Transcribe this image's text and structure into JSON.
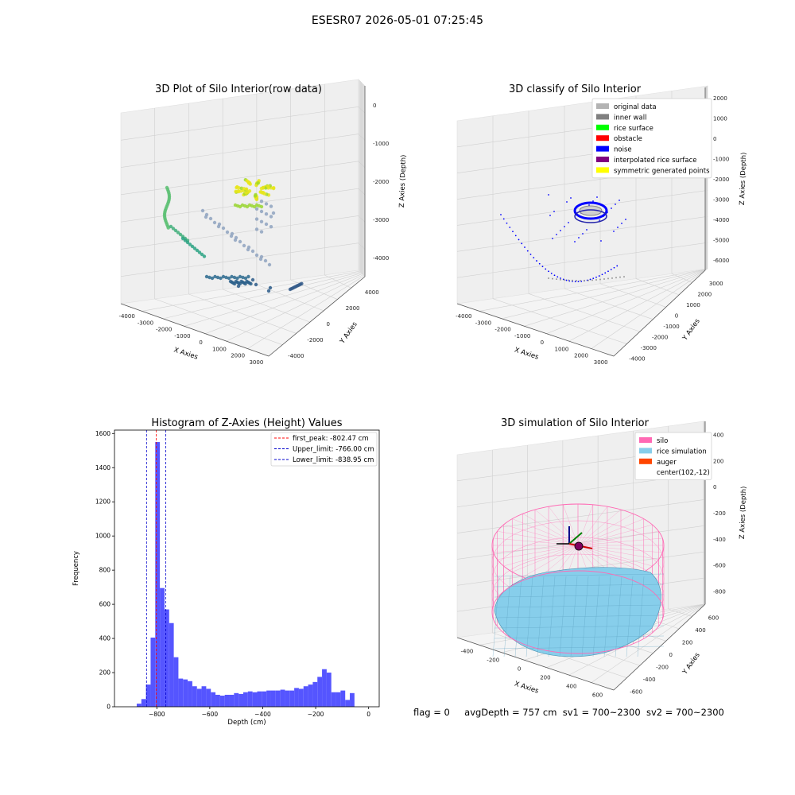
{
  "suptitle": "ESESR07 2026-05-01 07:25:45",
  "footer": {
    "flag": "flag = 0",
    "avg": "avgDepth = 757 cm",
    "sv1": "sv1 = 700~2300",
    "sv2": "sv2 = 700~2300"
  },
  "colors": {
    "hist_bar": "#5555ff",
    "first_peak": "#ff0000",
    "limits": "#0000cc",
    "silo": "#ff69b4",
    "rice": "#87ceeb",
    "auger": "#ff4500",
    "pane": "#f2f2f2",
    "grid": "#d0d0d0"
  },
  "chart_data": [
    {
      "type": "scatter",
      "title": "3D Plot of Silo Interior(row data)",
      "xlabel": "X Axies",
      "ylabel": "Y Axies",
      "zlabel": "Z Axies (Depth)",
      "xticks": [
        "-4000",
        "-3000",
        "-2000",
        "-1000",
        "0",
        "1000",
        "2000",
        "3000"
      ],
      "yticks": [
        "-4000",
        "-2000",
        "0",
        "2000",
        "4000"
      ],
      "zticks": [
        "0",
        "-1000",
        "-2000",
        "-3000",
        "-4000"
      ],
      "xlim": [
        -4500,
        3000
      ],
      "ylim": [
        -4500,
        4500
      ],
      "zlim": [
        -4500,
        200
      ]
    },
    {
      "type": "scatter",
      "title": "3D classify of Silo Interior",
      "xlabel": "X Axies",
      "ylabel": "Y Axies",
      "zlabel": "Z Axies (Depth)",
      "xticks": [
        "-4000",
        "-3000",
        "-2000",
        "-1000",
        "0",
        "1000",
        "2000",
        "3000"
      ],
      "yticks": [
        "-4000",
        "-3000",
        "-2000",
        "-1000",
        "0",
        "1000",
        "2000",
        "3000"
      ],
      "zticks": [
        "2000",
        "1000",
        "0",
        "-1000",
        "-2000",
        "-3000",
        "-4000",
        "-5000",
        "-6000"
      ],
      "legend_position": "upper right",
      "legend": [
        {
          "label": "original data",
          "color": "#b3b3b3"
        },
        {
          "label": "inner wall",
          "color": "#808080"
        },
        {
          "label": "rice surface",
          "color": "#00ff00"
        },
        {
          "label": "obstacle",
          "color": "#ff0000"
        },
        {
          "label": "noise",
          "color": "#0000ff"
        },
        {
          "label": "interpolated rice surface",
          "color": "#800080"
        },
        {
          "label": "symmetric generated points",
          "color": "#ffff00"
        }
      ]
    },
    {
      "type": "bar",
      "title": "Histogram of Z-Axies (Height) Values",
      "xlabel": "Depth (cm)",
      "ylabel": "Frequency",
      "xlim": [
        -960,
        40
      ],
      "ylim": [
        0,
        1620
      ],
      "xticks": [
        -800,
        -600,
        -400,
        -200,
        0
      ],
      "yticks": [
        0,
        200,
        400,
        600,
        800,
        1000,
        1200,
        1400,
        1600
      ],
      "bin_width": 17.5,
      "bin_start": -876,
      "values": [
        18,
        45,
        130,
        405,
        1550,
        695,
        570,
        490,
        290,
        165,
        160,
        150,
        120,
        105,
        120,
        105,
        85,
        70,
        65,
        70,
        70,
        80,
        75,
        85,
        90,
        85,
        90,
        90,
        95,
        95,
        95,
        100,
        95,
        95,
        110,
        105,
        120,
        130,
        145,
        175,
        220,
        200,
        85,
        85,
        95,
        40,
        80
      ],
      "lines": [
        {
          "label": "first_peak: -802.47 cm",
          "x": -802.47,
          "color": "#ff0000"
        },
        {
          "label": "Upper_limit: -766.00 cm",
          "x": -766.0,
          "color": "#0000cc"
        },
        {
          "label": "Lower_limit: -838.95 cm",
          "x": -838.95,
          "color": "#0000cc"
        }
      ],
      "legend_position": "upper right"
    },
    {
      "type": "scatter",
      "title": "3D simulation of Silo Interior",
      "xlabel": "X Axies",
      "ylabel": "Y Axies",
      "zlabel": "Z Axies (Depth)",
      "xticks": [
        "-400",
        "-200",
        "0",
        "200",
        "400",
        "600"
      ],
      "yticks": [
        "-600",
        "-400",
        "-200",
        "0",
        "200",
        "400",
        "600"
      ],
      "zticks": [
        "400",
        "200",
        "0",
        "-200",
        "-400",
        "-600",
        "-800"
      ],
      "legend_position": "upper right",
      "legend": [
        {
          "label": "silo",
          "color": "#ff69b4"
        },
        {
          "label": "rice simulation",
          "color": "#87ceeb"
        },
        {
          "label": "auger",
          "color": "#ff4500"
        },
        {
          "label": "center(102,-12)",
          "color": "none"
        }
      ]
    }
  ]
}
